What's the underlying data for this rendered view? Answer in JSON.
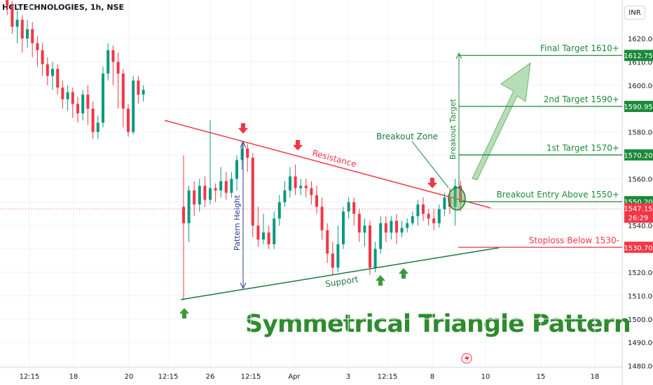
{
  "chart_data": {
    "type": "candlestick",
    "title": "HCLTECHNOLOGIES, 1h, NSE",
    "currency_button": "INR",
    "y_ticks": [
      1620,
      1610,
      1600,
      1590,
      1580,
      1570,
      1560,
      1550,
      1540,
      1530,
      1520,
      1510,
      1500,
      1490,
      1480
    ],
    "y_tick_labels": [
      "1620.00",
      "1610.00",
      "1600.00",
      "1590.00",
      "1580.00",
      "1570.00",
      "1560.00",
      "1550.00",
      "1540.00",
      "1530.00",
      "1520.00",
      "1510.00",
      "1500.00",
      "1490.00",
      "1480.00"
    ],
    "x_ticks": [
      "12:15",
      "18",
      "20",
      "12:15",
      "26",
      "12:15",
      "Apr",
      "3",
      "12:15",
      "8",
      "10",
      "15",
      "18"
    ],
    "colors": {
      "up": "#089981",
      "down": "#f23645",
      "resistance": "#f23645",
      "support": "#1b7a3a",
      "target": "#1b8a3a",
      "pattern_height": "#2a3990",
      "title_text": "#2e8b2e"
    },
    "candles_rise_fall": [
      [
        1641,
        1638,
        1639,
        1643
      ],
      [
        1638,
        1634,
        1630,
        1640
      ],
      [
        1634,
        1625,
        1622,
        1636
      ],
      [
        1625,
        1628,
        1618,
        1632
      ],
      [
        1628,
        1620,
        1614,
        1630
      ],
      [
        1620,
        1624,
        1616,
        1628
      ],
      [
        1624,
        1618,
        1612,
        1627
      ],
      [
        1618,
        1615,
        1608,
        1621
      ],
      [
        1615,
        1609,
        1604,
        1618
      ],
      [
        1609,
        1604,
        1600,
        1612
      ],
      [
        1604,
        1607,
        1598,
        1610
      ],
      [
        1607,
        1599,
        1596,
        1609
      ],
      [
        1599,
        1594,
        1590,
        1602
      ],
      [
        1594,
        1597,
        1589,
        1600
      ],
      [
        1597,
        1592,
        1586,
        1599
      ],
      [
        1592,
        1588,
        1584,
        1595
      ],
      [
        1588,
        1596,
        1585,
        1598
      ],
      [
        1596,
        1590,
        1583,
        1600
      ],
      [
        1590,
        1580,
        1577,
        1593
      ],
      [
        1580,
        1584,
        1577,
        1587
      ],
      [
        1584,
        1605,
        1582,
        1608
      ],
      [
        1605,
        1615,
        1602,
        1618
      ],
      [
        1615,
        1610,
        1600,
        1617
      ],
      [
        1610,
        1605,
        1590,
        1614
      ],
      [
        1605,
        1590,
        1582,
        1607
      ],
      [
        1590,
        1580,
        1578,
        1592
      ],
      [
        1580,
        1602,
        1579,
        1604
      ],
      [
        1602,
        1596,
        1592,
        1604
      ],
      [
        1596,
        1598,
        1593,
        1600
      ]
    ],
    "candles": [
      [
        1548,
        1541,
        1508,
        1570
      ],
      [
        1541,
        1555,
        1533,
        1557
      ],
      [
        1555,
        1549,
        1544,
        1559
      ],
      [
        1549,
        1557,
        1546,
        1560
      ],
      [
        1557,
        1551,
        1548,
        1561
      ],
      [
        1551,
        1556,
        1549,
        1585
      ],
      [
        1556,
        1555,
        1550,
        1558
      ],
      [
        1555,
        1559,
        1552,
        1565
      ],
      [
        1559,
        1554,
        1551,
        1563
      ],
      [
        1554,
        1560,
        1552,
        1563
      ],
      [
        1560,
        1568,
        1555,
        1570
      ],
      [
        1568,
        1573,
        1564,
        1576
      ],
      [
        1573,
        1569,
        1563,
        1575
      ],
      [
        1569,
        1540,
        1535,
        1571
      ],
      [
        1540,
        1534,
        1531,
        1548
      ],
      [
        1534,
        1537,
        1532,
        1545
      ],
      [
        1537,
        1532,
        1530,
        1540
      ],
      [
        1532,
        1543,
        1530,
        1546
      ],
      [
        1543,
        1550,
        1540,
        1553
      ],
      [
        1550,
        1555,
        1548,
        1559
      ],
      [
        1555,
        1561,
        1552,
        1565
      ],
      [
        1561,
        1556,
        1553,
        1566
      ],
      [
        1556,
        1557,
        1553,
        1560
      ],
      [
        1557,
        1556,
        1552,
        1560
      ],
      [
        1556,
        1553,
        1549,
        1559
      ],
      [
        1553,
        1548,
        1545,
        1557
      ],
      [
        1548,
        1538,
        1534,
        1552
      ],
      [
        1538,
        1528,
        1524,
        1541
      ],
      [
        1528,
        1522,
        1519,
        1533
      ],
      [
        1522,
        1532,
        1520,
        1540
      ],
      [
        1532,
        1546,
        1530,
        1548
      ],
      [
        1546,
        1550,
        1543,
        1552
      ],
      [
        1550,
        1545,
        1540,
        1552
      ],
      [
        1545,
        1537,
        1533,
        1547
      ],
      [
        1537,
        1540,
        1531,
        1543
      ],
      [
        1540,
        1522,
        1519,
        1542
      ],
      [
        1522,
        1530,
        1520,
        1533
      ],
      [
        1530,
        1541,
        1528,
        1544
      ],
      [
        1541,
        1537,
        1533,
        1544
      ],
      [
        1537,
        1542,
        1534,
        1544
      ],
      [
        1542,
        1537,
        1532,
        1545
      ],
      [
        1537,
        1539,
        1535,
        1542
      ],
      [
        1539,
        1541,
        1537,
        1543
      ],
      [
        1541,
        1544,
        1540,
        1546
      ],
      [
        1544,
        1549,
        1540,
        1551
      ],
      [
        1549,
        1545,
        1542,
        1552
      ],
      [
        1545,
        1543,
        1540,
        1547
      ],
      [
        1543,
        1541,
        1538,
        1547
      ],
      [
        1541,
        1547,
        1539,
        1549
      ],
      [
        1547,
        1552,
        1544,
        1554
      ],
      [
        1552,
        1548,
        1545,
        1556
      ],
      [
        1548,
        1557,
        1540,
        1560
      ],
      [
        1557,
        1550,
        1546,
        1559
      ]
    ],
    "resistance_line": {
      "label": "Resistance",
      "from": [
        1585,
        0
      ],
      "to": [
        1547,
        1
      ]
    },
    "support_line": {
      "label": "Support",
      "from": [
        1508,
        0
      ],
      "to": [
        1530,
        1
      ]
    },
    "pattern_height_label": "Pattern Height",
    "breakout_target_label": "Breakout Target",
    "breakout_zone_label": "Breakout Zone",
    "levels": [
      {
        "label": "Final Target 1610+",
        "value": 1612.75,
        "tag": "1612.75",
        "color": "#1b8a3a"
      },
      {
        "label": "2nd Target 1590+",
        "value": 1590.95,
        "tag": "1590.95",
        "color": "#1b8a3a"
      },
      {
        "label": "1st Target 1570+",
        "value": 1570.2,
        "tag": "1570.20",
        "color": "#1b8a3a"
      },
      {
        "label": "Breakout Entry Above 1550+",
        "value": 1550.2,
        "tag": "1550.20",
        "color": "#1b8a3a"
      },
      {
        "label": "Stoploss Below 1530-",
        "value": 1530.7,
        "tag": "1530.70",
        "color": "#f23645"
      }
    ],
    "current_price": {
      "value": 1547.15,
      "tag": "1547.15",
      "countdown": "26:29"
    },
    "pattern_title": "Symmetrical Triangle Pattern"
  }
}
